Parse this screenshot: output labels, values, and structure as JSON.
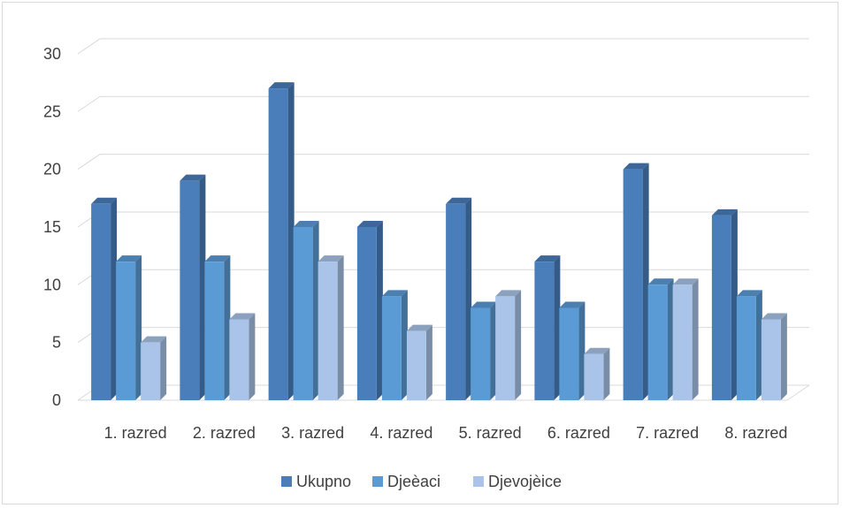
{
  "chart_data": {
    "type": "bar",
    "title": "",
    "xlabel": "",
    "ylabel": "",
    "ylim": [
      0,
      30
    ],
    "yticks": [
      0,
      5,
      10,
      15,
      20,
      25,
      30
    ],
    "grid": true,
    "legend_position": "bottom",
    "categories": [
      "1. razred",
      "2. razred",
      "3. razred",
      "4. razred",
      "5. razred",
      "6. razred",
      "7. razred",
      "8. razred"
    ],
    "series": [
      {
        "name": "Ukupno",
        "color": "#4a7ebb",
        "values": [
          17,
          19,
          27,
          15,
          17,
          12,
          20,
          16
        ]
      },
      {
        "name": "Djeèaci",
        "color": "#5b9bd5",
        "values": [
          12,
          12,
          15,
          9,
          8,
          8,
          10,
          9
        ]
      },
      {
        "name": "Djevojèice",
        "color": "#a9c4e8",
        "values": [
          5,
          7,
          12,
          6,
          9,
          4,
          10,
          7
        ]
      }
    ]
  }
}
